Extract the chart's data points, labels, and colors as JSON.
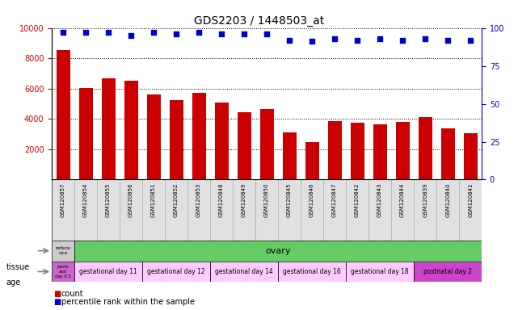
{
  "title": "GDS2203 / 1448503_at",
  "samples": [
    "GSM120857",
    "GSM120854",
    "GSM120855",
    "GSM120856",
    "GSM120851",
    "GSM120852",
    "GSM120853",
    "GSM120848",
    "GSM120849",
    "GSM120850",
    "GSM120845",
    "GSM120846",
    "GSM120847",
    "GSM120842",
    "GSM120843",
    "GSM120844",
    "GSM120839",
    "GSM120840",
    "GSM120841"
  ],
  "counts": [
    8550,
    6050,
    6680,
    6530,
    5600,
    5250,
    5700,
    5100,
    4450,
    4680,
    3100,
    2450,
    3880,
    3750,
    3650,
    3800,
    4100,
    3380,
    3050
  ],
  "percentiles": [
    97,
    97,
    97,
    95,
    97,
    96,
    97,
    96,
    96,
    96,
    92,
    91,
    93,
    92,
    93,
    92,
    93,
    92,
    92
  ],
  "bar_color": "#cc0000",
  "dot_color": "#0000cc",
  "ylim_left": [
    0,
    10000
  ],
  "ylim_right": [
    0,
    100
  ],
  "yticks_left": [
    2000,
    4000,
    6000,
    8000,
    10000
  ],
  "yticks_right": [
    0,
    25,
    50,
    75,
    100
  ],
  "tissue_first_label": "refere\nnce",
  "tissue_first_color": "#cccccc",
  "tissue_second_label": "ovary",
  "tissue_second_color": "#66cc66",
  "age_first_label": "postn\natal\nday 0.5",
  "age_first_color": "#cc66cc",
  "age_segments": [
    {
      "label": "gestational day 11",
      "color": "#ffccff",
      "count": 3
    },
    {
      "label": "gestational day 12",
      "color": "#ffccff",
      "count": 3
    },
    {
      "label": "gestational day 14",
      "color": "#ffccff",
      "count": 3
    },
    {
      "label": "gestational day 16",
      "color": "#ffccff",
      "count": 3
    },
    {
      "label": "gestational day 18",
      "color": "#ffccff",
      "count": 3
    },
    {
      "label": "postnatal day 2",
      "color": "#cc44cc",
      "count": 3
    }
  ],
  "legend_count_color": "#cc0000",
  "legend_pct_color": "#0000cc",
  "bg_color": "#ffffff",
  "names_bg_color": "#e0e0e0",
  "tick_label_color_left": "#cc0000",
  "tick_label_color_right": "#0000cc",
  "grid_color": "#000000",
  "n_samples": 19
}
